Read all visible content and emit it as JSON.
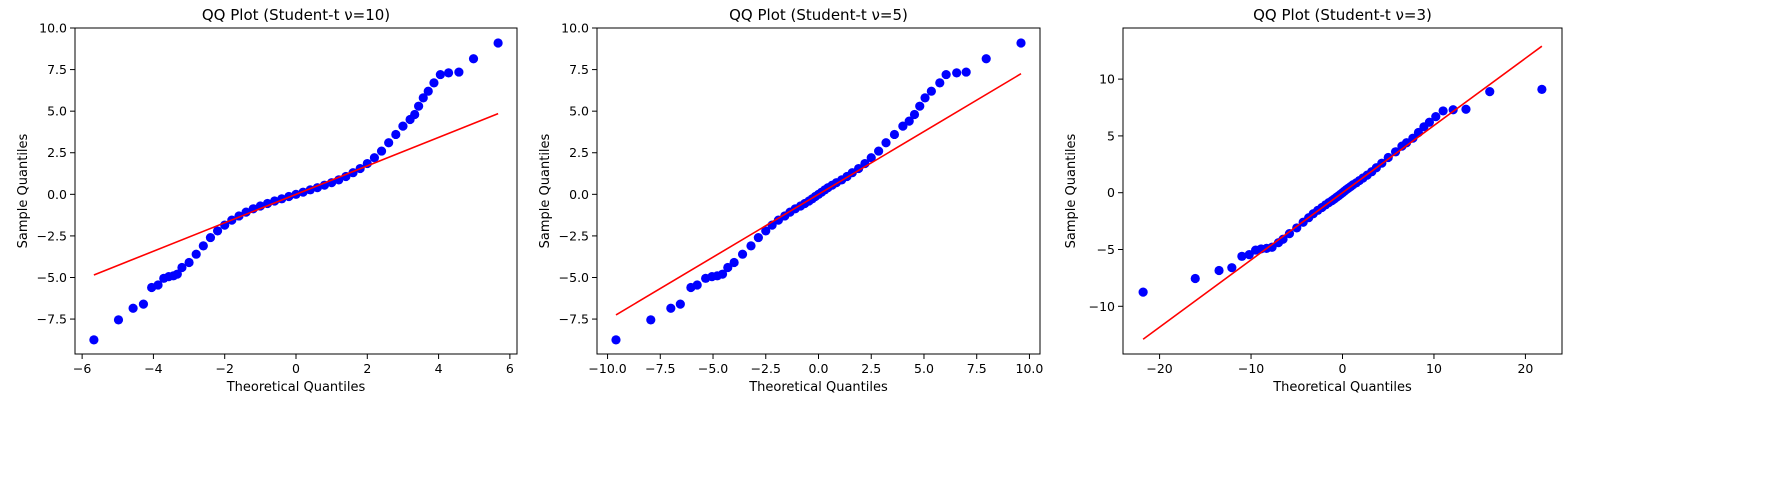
{
  "chart_data": [
    {
      "type": "scatter",
      "title": "QQ Plot (Student-t ν=10)",
      "xlabel": "Theoretical Quantiles",
      "ylabel": "Sample Quantiles",
      "xlim": [
        -6.2,
        6.2
      ],
      "ylim": [
        -9.6,
        10.0
      ],
      "xticks": [
        -6,
        -4,
        -2,
        0,
        2,
        4,
        6
      ],
      "xtick_labels": [
        "−6",
        "−4",
        "−2",
        "0",
        "2",
        "4",
        "6"
      ],
      "yticks": [
        -7.5,
        -5.0,
        -2.5,
        0.0,
        2.5,
        5.0,
        7.5,
        10.0
      ],
      "ytick_labels": [
        "−7.5",
        "−5.0",
        "−2.5",
        "0.0",
        "2.5",
        "5.0",
        "7.5",
        "10.0"
      ],
      "grid": false,
      "reference_line": {
        "x": [
          -5.67,
          5.67
        ],
        "y": [
          -4.85,
          4.85
        ],
        "color": "#ff0000"
      },
      "series": [
        {
          "color": "#0000ff",
          "points": [
            [
              -5.67,
              -8.75
            ],
            [
              -4.98,
              -7.55
            ],
            [
              -4.57,
              -6.85
            ],
            [
              -4.28,
              -6.6
            ],
            [
              -4.05,
              -5.6
            ],
            [
              -3.87,
              -5.45
            ],
            [
              -3.71,
              -5.05
            ],
            [
              -3.57,
              -4.95
            ],
            [
              -3.44,
              -4.9
            ],
            [
              -3.33,
              -4.8
            ],
            [
              -3.2,
              -4.4
            ],
            [
              -3.0,
              -4.1
            ],
            [
              -2.8,
              -3.6
            ],
            [
              -2.6,
              -3.1
            ],
            [
              -2.4,
              -2.6
            ],
            [
              -2.2,
              -2.2
            ],
            [
              -2.0,
              -1.85
            ],
            [
              -1.8,
              -1.55
            ],
            [
              -1.6,
              -1.3
            ],
            [
              -1.4,
              -1.07
            ],
            [
              -1.2,
              -0.87
            ],
            [
              -1.0,
              -0.7
            ],
            [
              -0.8,
              -0.55
            ],
            [
              -0.6,
              -0.4
            ],
            [
              -0.4,
              -0.27
            ],
            [
              -0.2,
              -0.13
            ],
            [
              0.0,
              0.0
            ],
            [
              0.2,
              0.13
            ],
            [
              0.4,
              0.27
            ],
            [
              0.6,
              0.4
            ],
            [
              0.8,
              0.55
            ],
            [
              1.0,
              0.7
            ],
            [
              1.2,
              0.87
            ],
            [
              1.4,
              1.07
            ],
            [
              1.6,
              1.3
            ],
            [
              1.8,
              1.55
            ],
            [
              2.0,
              1.85
            ],
            [
              2.2,
              2.2
            ],
            [
              2.4,
              2.6
            ],
            [
              2.6,
              3.1
            ],
            [
              2.8,
              3.6
            ],
            [
              3.0,
              4.1
            ],
            [
              3.2,
              4.5
            ],
            [
              3.33,
              4.8
            ],
            [
              3.44,
              5.3
            ],
            [
              3.57,
              5.8
            ],
            [
              3.71,
              6.2
            ],
            [
              3.87,
              6.7
            ],
            [
              4.05,
              7.2
            ],
            [
              4.28,
              7.3
            ],
            [
              4.57,
              7.35
            ],
            [
              4.98,
              8.15
            ],
            [
              5.67,
              9.1
            ]
          ]
        }
      ]
    },
    {
      "type": "scatter",
      "title": "QQ Plot (Student-t ν=5)",
      "xlabel": "Theoretical Quantiles",
      "ylabel": "Sample Quantiles",
      "xlim": [
        -10.5,
        10.5
      ],
      "ylim": [
        -9.6,
        10.0
      ],
      "xticks": [
        -10.0,
        -7.5,
        -5.0,
        -2.5,
        0.0,
        2.5,
        5.0,
        7.5,
        10.0
      ],
      "xtick_labels": [
        "−10.0",
        "−7.5",
        "−5.0",
        "−2.5",
        "0.0",
        "2.5",
        "5.0",
        "7.5",
        "10.0"
      ],
      "yticks": [
        -7.5,
        -5.0,
        -2.5,
        0.0,
        2.5,
        5.0,
        7.5,
        10.0
      ],
      "ytick_labels": [
        "−7.5",
        "−5.0",
        "−2.5",
        "0.0",
        "2.5",
        "5.0",
        "7.5",
        "10.0"
      ],
      "grid": false,
      "reference_line": {
        "x": [
          -9.6,
          9.6
        ],
        "y": [
          -7.25,
          7.25
        ],
        "color": "#ff0000"
      },
      "series": [
        {
          "color": "#0000ff",
          "points": [
            [
              -9.6,
              -8.75
            ],
            [
              -7.95,
              -7.55
            ],
            [
              -7.0,
              -6.85
            ],
            [
              -6.55,
              -6.6
            ],
            [
              -6.05,
              -5.6
            ],
            [
              -5.75,
              -5.45
            ],
            [
              -5.35,
              -5.05
            ],
            [
              -5.05,
              -4.95
            ],
            [
              -4.8,
              -4.9
            ],
            [
              -4.55,
              -4.8
            ],
            [
              -4.3,
              -4.4
            ],
            [
              -4.0,
              -4.1
            ],
            [
              -3.6,
              -3.6
            ],
            [
              -3.2,
              -3.1
            ],
            [
              -2.85,
              -2.6
            ],
            [
              -2.5,
              -2.2
            ],
            [
              -2.2,
              -1.85
            ],
            [
              -1.9,
              -1.55
            ],
            [
              -1.6,
              -1.3
            ],
            [
              -1.35,
              -1.07
            ],
            [
              -1.1,
              -0.87
            ],
            [
              -0.85,
              -0.7
            ],
            [
              -0.65,
              -0.55
            ],
            [
              -0.45,
              -0.4
            ],
            [
              -0.3,
              -0.27
            ],
            [
              -0.15,
              -0.13
            ],
            [
              0.0,
              0.0
            ],
            [
              0.15,
              0.13
            ],
            [
              0.3,
              0.27
            ],
            [
              0.45,
              0.4
            ],
            [
              0.65,
              0.55
            ],
            [
              0.85,
              0.7
            ],
            [
              1.1,
              0.87
            ],
            [
              1.35,
              1.07
            ],
            [
              1.6,
              1.3
            ],
            [
              1.9,
              1.55
            ],
            [
              2.2,
              1.85
            ],
            [
              2.5,
              2.2
            ],
            [
              2.85,
              2.6
            ],
            [
              3.2,
              3.1
            ],
            [
              3.6,
              3.6
            ],
            [
              4.0,
              4.1
            ],
            [
              4.3,
              4.4
            ],
            [
              4.55,
              4.8
            ],
            [
              4.8,
              5.3
            ],
            [
              5.05,
              5.8
            ],
            [
              5.35,
              6.2
            ],
            [
              5.75,
              6.7
            ],
            [
              6.05,
              7.2
            ],
            [
              6.55,
              7.3
            ],
            [
              7.0,
              7.35
            ],
            [
              7.95,
              8.15
            ],
            [
              9.6,
              9.1
            ]
          ]
        }
      ]
    },
    {
      "type": "scatter",
      "title": "QQ Plot (Student-t ν=3)",
      "xlabel": "Theoretical Quantiles",
      "ylabel": "Sample Quantiles",
      "xlim": [
        -24.0,
        24.0
      ],
      "ylim": [
        -14.2,
        14.5
      ],
      "xticks": [
        -20,
        -10,
        0,
        10,
        20
      ],
      "xtick_labels": [
        "−20",
        "−10",
        "0",
        "10",
        "20"
      ],
      "yticks": [
        -10,
        -5,
        0,
        5,
        10
      ],
      "ytick_labels": [
        "−10",
        "−5",
        "0",
        "5",
        "10"
      ],
      "grid": false,
      "reference_line": {
        "x": [
          -21.8,
          21.8
        ],
        "y": [
          -12.9,
          12.9
        ],
        "color": "#ff0000"
      },
      "series": [
        {
          "color": "#0000ff",
          "points": [
            [
              -21.8,
              -8.75
            ],
            [
              -16.1,
              -7.55
            ],
            [
              -13.5,
              -6.85
            ],
            [
              -12.1,
              -6.6
            ],
            [
              -11.0,
              -5.6
            ],
            [
              -10.2,
              -5.45
            ],
            [
              -9.5,
              -5.05
            ],
            [
              -8.9,
              -4.95
            ],
            [
              -8.3,
              -4.9
            ],
            [
              -7.7,
              -4.8
            ],
            [
              -7.0,
              -4.4
            ],
            [
              -6.5,
              -4.1
            ],
            [
              -5.8,
              -3.6
            ],
            [
              -5.0,
              -3.1
            ],
            [
              -4.3,
              -2.6
            ],
            [
              -3.7,
              -2.2
            ],
            [
              -3.2,
              -1.85
            ],
            [
              -2.7,
              -1.55
            ],
            [
              -2.25,
              -1.3
            ],
            [
              -1.85,
              -1.07
            ],
            [
              -1.5,
              -0.87
            ],
            [
              -1.15,
              -0.7
            ],
            [
              -0.9,
              -0.55
            ],
            [
              -0.65,
              -0.4
            ],
            [
              -0.42,
              -0.27
            ],
            [
              -0.2,
              -0.13
            ],
            [
              0.0,
              0.0
            ],
            [
              0.2,
              0.13
            ],
            [
              0.42,
              0.27
            ],
            [
              0.65,
              0.4
            ],
            [
              0.9,
              0.55
            ],
            [
              1.15,
              0.7
            ],
            [
              1.5,
              0.87
            ],
            [
              1.85,
              1.07
            ],
            [
              2.25,
              1.3
            ],
            [
              2.7,
              1.55
            ],
            [
              3.2,
              1.85
            ],
            [
              3.7,
              2.2
            ],
            [
              4.3,
              2.6
            ],
            [
              5.0,
              3.1
            ],
            [
              5.8,
              3.6
            ],
            [
              6.5,
              4.1
            ],
            [
              7.0,
              4.4
            ],
            [
              7.7,
              4.8
            ],
            [
              8.3,
              5.3
            ],
            [
              8.9,
              5.8
            ],
            [
              9.5,
              6.2
            ],
            [
              10.2,
              6.7
            ],
            [
              11.0,
              7.2
            ],
            [
              12.1,
              7.3
            ],
            [
              13.5,
              7.35
            ],
            [
              16.1,
              8.9
            ],
            [
              21.8,
              9.1
            ]
          ]
        }
      ]
    }
  ]
}
